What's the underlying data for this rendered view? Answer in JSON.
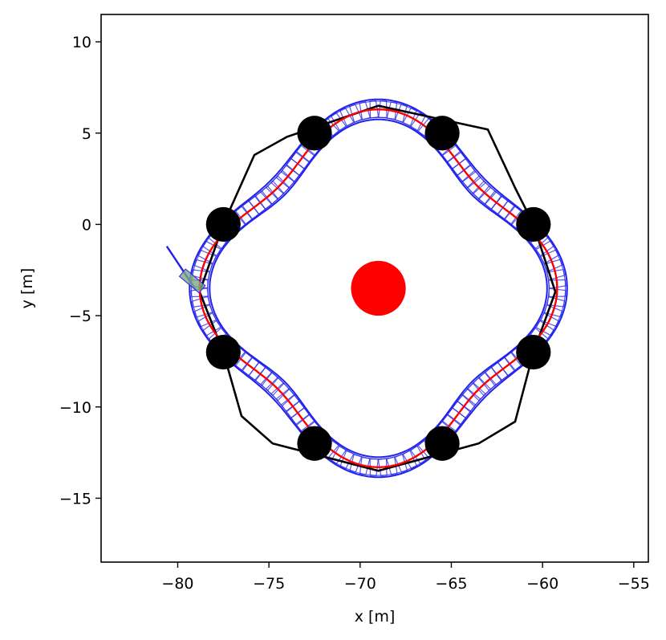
{
  "chart_data": {
    "type": "scatter",
    "title": "",
    "xlabel": "x [m]",
    "ylabel": "y [m]",
    "xlim": [
      -84.2,
      -54.2
    ],
    "ylim": [
      -18.5,
      11.5
    ],
    "xticks": [
      -80,
      -75,
      -70,
      -65,
      -60,
      -55
    ],
    "yticks": [
      10,
      5,
      0,
      -5,
      -10,
      -15
    ],
    "xtick_labels": [
      "−80",
      "−75",
      "−70",
      "−65",
      "−60",
      "−55"
    ],
    "ytick_labels": [
      "10",
      "5",
      "0",
      "−5",
      "−10",
      "−15"
    ],
    "grid": false,
    "center": {
      "x": -69.0,
      "y": -3.5
    },
    "obstacles": [
      {
        "x": -72.5,
        "y": 5.0
      },
      {
        "x": -65.5,
        "y": 5.0
      },
      {
        "x": -77.5,
        "y": 0.0
      },
      {
        "x": -60.5,
        "y": 0.0
      },
      {
        "x": -77.5,
        "y": -7.0
      },
      {
        "x": -60.5,
        "y": -7.0
      },
      {
        "x": -72.5,
        "y": -12.0
      },
      {
        "x": -65.5,
        "y": -12.0
      }
    ],
    "polygon": [
      [
        -69.0,
        6.5
      ],
      [
        -63.0,
        5.2
      ],
      [
        -61.5,
        2.0
      ],
      [
        -60.5,
        0.0
      ],
      [
        -59.3,
        -3.7
      ],
      [
        -60.5,
        -7.0
      ],
      [
        -61.5,
        -10.8
      ],
      [
        -63.5,
        -12.0
      ],
      [
        -69.0,
        -13.5
      ],
      [
        -74.8,
        -12.0
      ],
      [
        -76.5,
        -10.5
      ],
      [
        -77.5,
        -7.0
      ],
      [
        -78.8,
        -3.7
      ],
      [
        -77.5,
        0.0
      ],
      [
        -75.8,
        3.8
      ],
      [
        -74.0,
        4.8
      ]
    ],
    "path_params": {
      "radius": 8.8,
      "amplitude": 1.0,
      "lobes": 4,
      "phase_deg": 0
    },
    "start_segment": [
      [
        -80.6,
        -1.2
      ],
      [
        -79.0,
        -3.6
      ]
    ],
    "colors": {
      "obstacle": "#000000",
      "center": "#ff0000",
      "path": "#ff0000",
      "boxes": "#2222ee",
      "boundary": "#000000",
      "start_box": "#7fa87f"
    }
  }
}
